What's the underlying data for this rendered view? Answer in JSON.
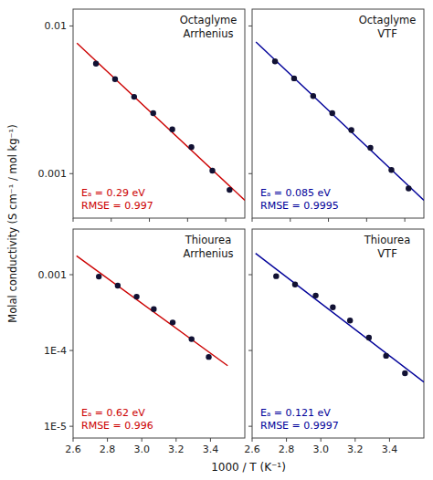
{
  "chart_data": [
    {
      "type": "scatter",
      "title": "Octaglyme",
      "subtitle": "Arrhenius",
      "y_label": "Molal conductivity (S cm⁻¹ / mol kg⁻¹)",
      "annotations": [
        "Eₐ = 0.29 eV",
        "RMSE = 0.997"
      ],
      "series": [
        {
          "type": "scatter",
          "color": "#111133",
          "x": [
            2.72,
            2.82,
            2.92,
            3.02,
            3.12,
            3.22,
            3.33,
            3.42
          ],
          "values": [
            0.00555904,
            0.00436516,
            0.00331131,
            0.0025704,
            0.00199526,
            0.00151356,
            0.00104713,
            0.000776247
          ]
        },
        {
          "type": "line",
          "color": "#cc0000",
          "x": [
            2.62,
            3.5
          ],
          "values": [
            0.00765043,
            0.000660337
          ]
        }
      ],
      "log": "y",
      "xlim": [
        2.6,
        3.5
      ],
      "ylim": [
        0.0005,
        0.013
      ],
      "xticks": [
        2.6,
        2.8,
        {
          "value": 3,
          "label": "3.0"
        },
        3.2,
        3.4
      ],
      "yticks": [
        0.001,
        0.01
      ],
      "tick_labels": "y"
    },
    {
      "type": "scatter",
      "title": "Octaglyme",
      "subtitle": "VTF",
      "annotations": [
        "Eₐ = 0.085 eV",
        "RMSE = 0.9995"
      ],
      "series": [
        {
          "type": "scatter",
          "color": "#111133",
          "x": [
            2.72,
            2.82,
            2.92,
            3.02,
            3.12,
            3.22,
            3.33,
            3.42
          ],
          "values": [
            0.0057544,
            0.0044157,
            0.00334965,
            0.0025704,
            0.00197242,
            0.00149624,
            0.00105925,
            0.000794328
          ]
        },
        {
          "type": "line",
          "color": "#000099",
          "x": [
            2.62,
            3.5
          ],
          "values": [
            0.00778284,
            0.000660692
          ]
        }
      ],
      "log": "y",
      "xlim": [
        2.6,
        3.5
      ],
      "ylim": [
        0.0005,
        0.013
      ],
      "xticks": [
        2.6,
        2.8,
        {
          "value": 3,
          "label": "3.0"
        },
        3.2,
        3.4
      ],
      "yticks": [
        0.001,
        0.01
      ],
      "tick_labels": false
    },
    {
      "type": "scatter",
      "title": "Thiourea",
      "subtitle": "Arrhenius",
      "x_label": "1000 / T (K⁻¹)",
      "annotations": [
        "Eₐ = 0.62 eV",
        "RMSE = 0.996"
      ],
      "series": [
        {
          "type": "scatter",
          "color": "#111133",
          "x": [
            2.75,
            2.86,
            2.97,
            3.07,
            3.18,
            3.29,
            3.39
          ],
          "values": [
            0.000944061,
            0.000716143,
            0.000512861,
            0.000350752,
            0.000234423,
            0.000141254,
            8.22243e-05
          ]
        },
        {
          "type": "line",
          "color": "#cc0000",
          "x": [
            2.62,
            3.5
          ],
          "values": [
            0.00177388,
            6.29728e-05
          ]
        }
      ],
      "log": "y",
      "xlim": [
        2.6,
        3.6
      ],
      "ylim": [
        7e-06,
        0.004
      ],
      "xticks": [
        2.6,
        2.8,
        {
          "value": 3,
          "label": "3.0"
        },
        3.2,
        3.4
      ],
      "yticks": [
        {
          "value": 1e-05,
          "label": "1E-5"
        },
        {
          "value": 0.0001,
          "label": "1E-4"
        },
        0.001
      ]
    },
    {
      "type": "scatter",
      "title": "Thiourea",
      "subtitle": "VTF",
      "annotations": [
        "Eₐ = 0.121 eV",
        "RMSE = 0.9997"
      ],
      "series": [
        {
          "type": "scatter",
          "color": "#111133",
          "x": [
            2.74,
            2.85,
            2.97,
            3.07,
            3.17,
            3.28,
            3.38,
            3.49
          ],
          "values": [
            0.000954993,
            0.00074131,
            0.000530884,
            0.000371535,
            0.000248313,
            0.000147911,
            8.51138e-05,
            5.01187e-05
          ]
        },
        {
          "type": "line",
          "color": "#000099",
          "x": [
            2.62,
            3.6
          ],
          "values": [
            0.00191188,
            3.83578e-05
          ]
        }
      ],
      "log": "y",
      "xlim": [
        2.6,
        3.6
      ],
      "ylim": [
        7e-06,
        0.004
      ],
      "xticks": [
        2.6,
        2.8,
        {
          "value": 3,
          "label": "3.0"
        },
        3.2,
        3.4
      ],
      "yticks": [
        {
          "value": 1e-05,
          "label": "1E-5"
        },
        {
          "value": 0.0001,
          "label": "1E-4"
        },
        0.001
      ],
      "tick_labels": "x"
    }
  ]
}
